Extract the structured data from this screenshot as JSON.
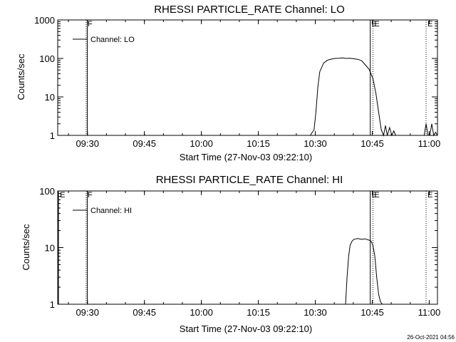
{
  "timestamp": "26-Oct-2021 04:56",
  "chart_data": [
    {
      "type": "line",
      "title": "RHESSI PARTICLE_RATE Channel: LO",
      "xlabel": "Start Time (27-Nov-03 09:22:10)",
      "ylabel": "Counts/sec",
      "x_unit": "minutes after 09:22:10",
      "xlim": [
        0,
        100
      ],
      "ylim": [
        1,
        1000
      ],
      "yscale": "log",
      "grid": false,
      "legend_position": "top-left",
      "x_ticks": [
        "09:30",
        "09:45",
        "10:00",
        "10:15",
        "10:30",
        "10:45",
        "11:00"
      ],
      "x_tick_values": [
        7.83,
        22.83,
        37.83,
        52.83,
        67.83,
        82.83,
        97.83
      ],
      "y_ticks": [
        "1",
        "10",
        "100",
        "1000"
      ],
      "y_tick_values": [
        1,
        10,
        100,
        1000
      ],
      "series": [
        {
          "name": "Channel: LO",
          "x": [
            66.5,
            67.5,
            68,
            68.5,
            69,
            70,
            71,
            72,
            73,
            74,
            75,
            76,
            77,
            78,
            79,
            80,
            81,
            82,
            83,
            83.8,
            84.5,
            85.2,
            85.8,
            86.3,
            86.8,
            87.4,
            88,
            88.5,
            89,
            96.5,
            97,
            97.5,
            98,
            98.5,
            99,
            99.5,
            100
          ],
          "y": [
            1,
            1.4,
            4,
            18,
            45,
            75,
            90,
            96,
            100,
            101,
            103,
            100,
            101,
            98,
            95,
            88,
            68,
            52,
            30,
            12,
            4,
            1.4,
            1,
            1.8,
            1,
            1.6,
            1,
            1.3,
            1,
            1,
            2,
            1,
            1,
            2,
            1,
            1.2,
            1
          ]
        }
      ],
      "markers": [
        {
          "label": "F",
          "x": 7.5,
          "style": "dotted"
        },
        {
          "label": "F",
          "x": 7.8,
          "style": "solid"
        },
        {
          "label": "E",
          "x": 82.3,
          "style": "solid"
        },
        {
          "label": "E",
          "x": 83.0,
          "style": "dotted"
        },
        {
          "label": "E",
          "x": 97.0,
          "style": "dotted"
        }
      ]
    },
    {
      "type": "line",
      "title": "RHESSI PARTICLE_RATE Channel: HI",
      "xlabel": "Start Time (27-Nov-03 09:22:10)",
      "ylabel": "Counts/sec",
      "x_unit": "minutes after 09:22:10",
      "xlim": [
        0,
        100
      ],
      "ylim": [
        1,
        100
      ],
      "yscale": "log",
      "grid": false,
      "legend_position": "top-left",
      "x_ticks": [
        "09:30",
        "09:45",
        "10:00",
        "10:15",
        "10:30",
        "10:45",
        "11:00"
      ],
      "x_tick_values": [
        7.83,
        22.83,
        37.83,
        52.83,
        67.83,
        82.83,
        97.83
      ],
      "y_ticks": [
        "1",
        "10",
        "100"
      ],
      "y_tick_values": [
        1,
        10,
        100
      ],
      "series": [
        {
          "name": "Channel: HI",
          "x": [
            75.8,
            76.2,
            76.6,
            77,
            77.5,
            78,
            79,
            80,
            81,
            82,
            82.5,
            83,
            83.5,
            84,
            84.5,
            85,
            85.5
          ],
          "y": [
            1,
            3,
            7,
            11,
            13,
            14,
            14.5,
            14,
            14.3,
            13.5,
            13,
            11,
            7,
            3,
            1.5,
            1.1,
            1
          ]
        }
      ],
      "markers": [
        {
          "label": "E",
          "x": 0.2,
          "style": "solid"
        },
        {
          "label": "F",
          "x": 7.5,
          "style": "dotted"
        },
        {
          "label": "F",
          "x": 7.8,
          "style": "solid"
        },
        {
          "label": "E",
          "x": 82.3,
          "style": "solid"
        },
        {
          "label": "E",
          "x": 83.0,
          "style": "dotted"
        },
        {
          "label": "E",
          "x": 97.0,
          "style": "dotted"
        }
      ]
    }
  ]
}
